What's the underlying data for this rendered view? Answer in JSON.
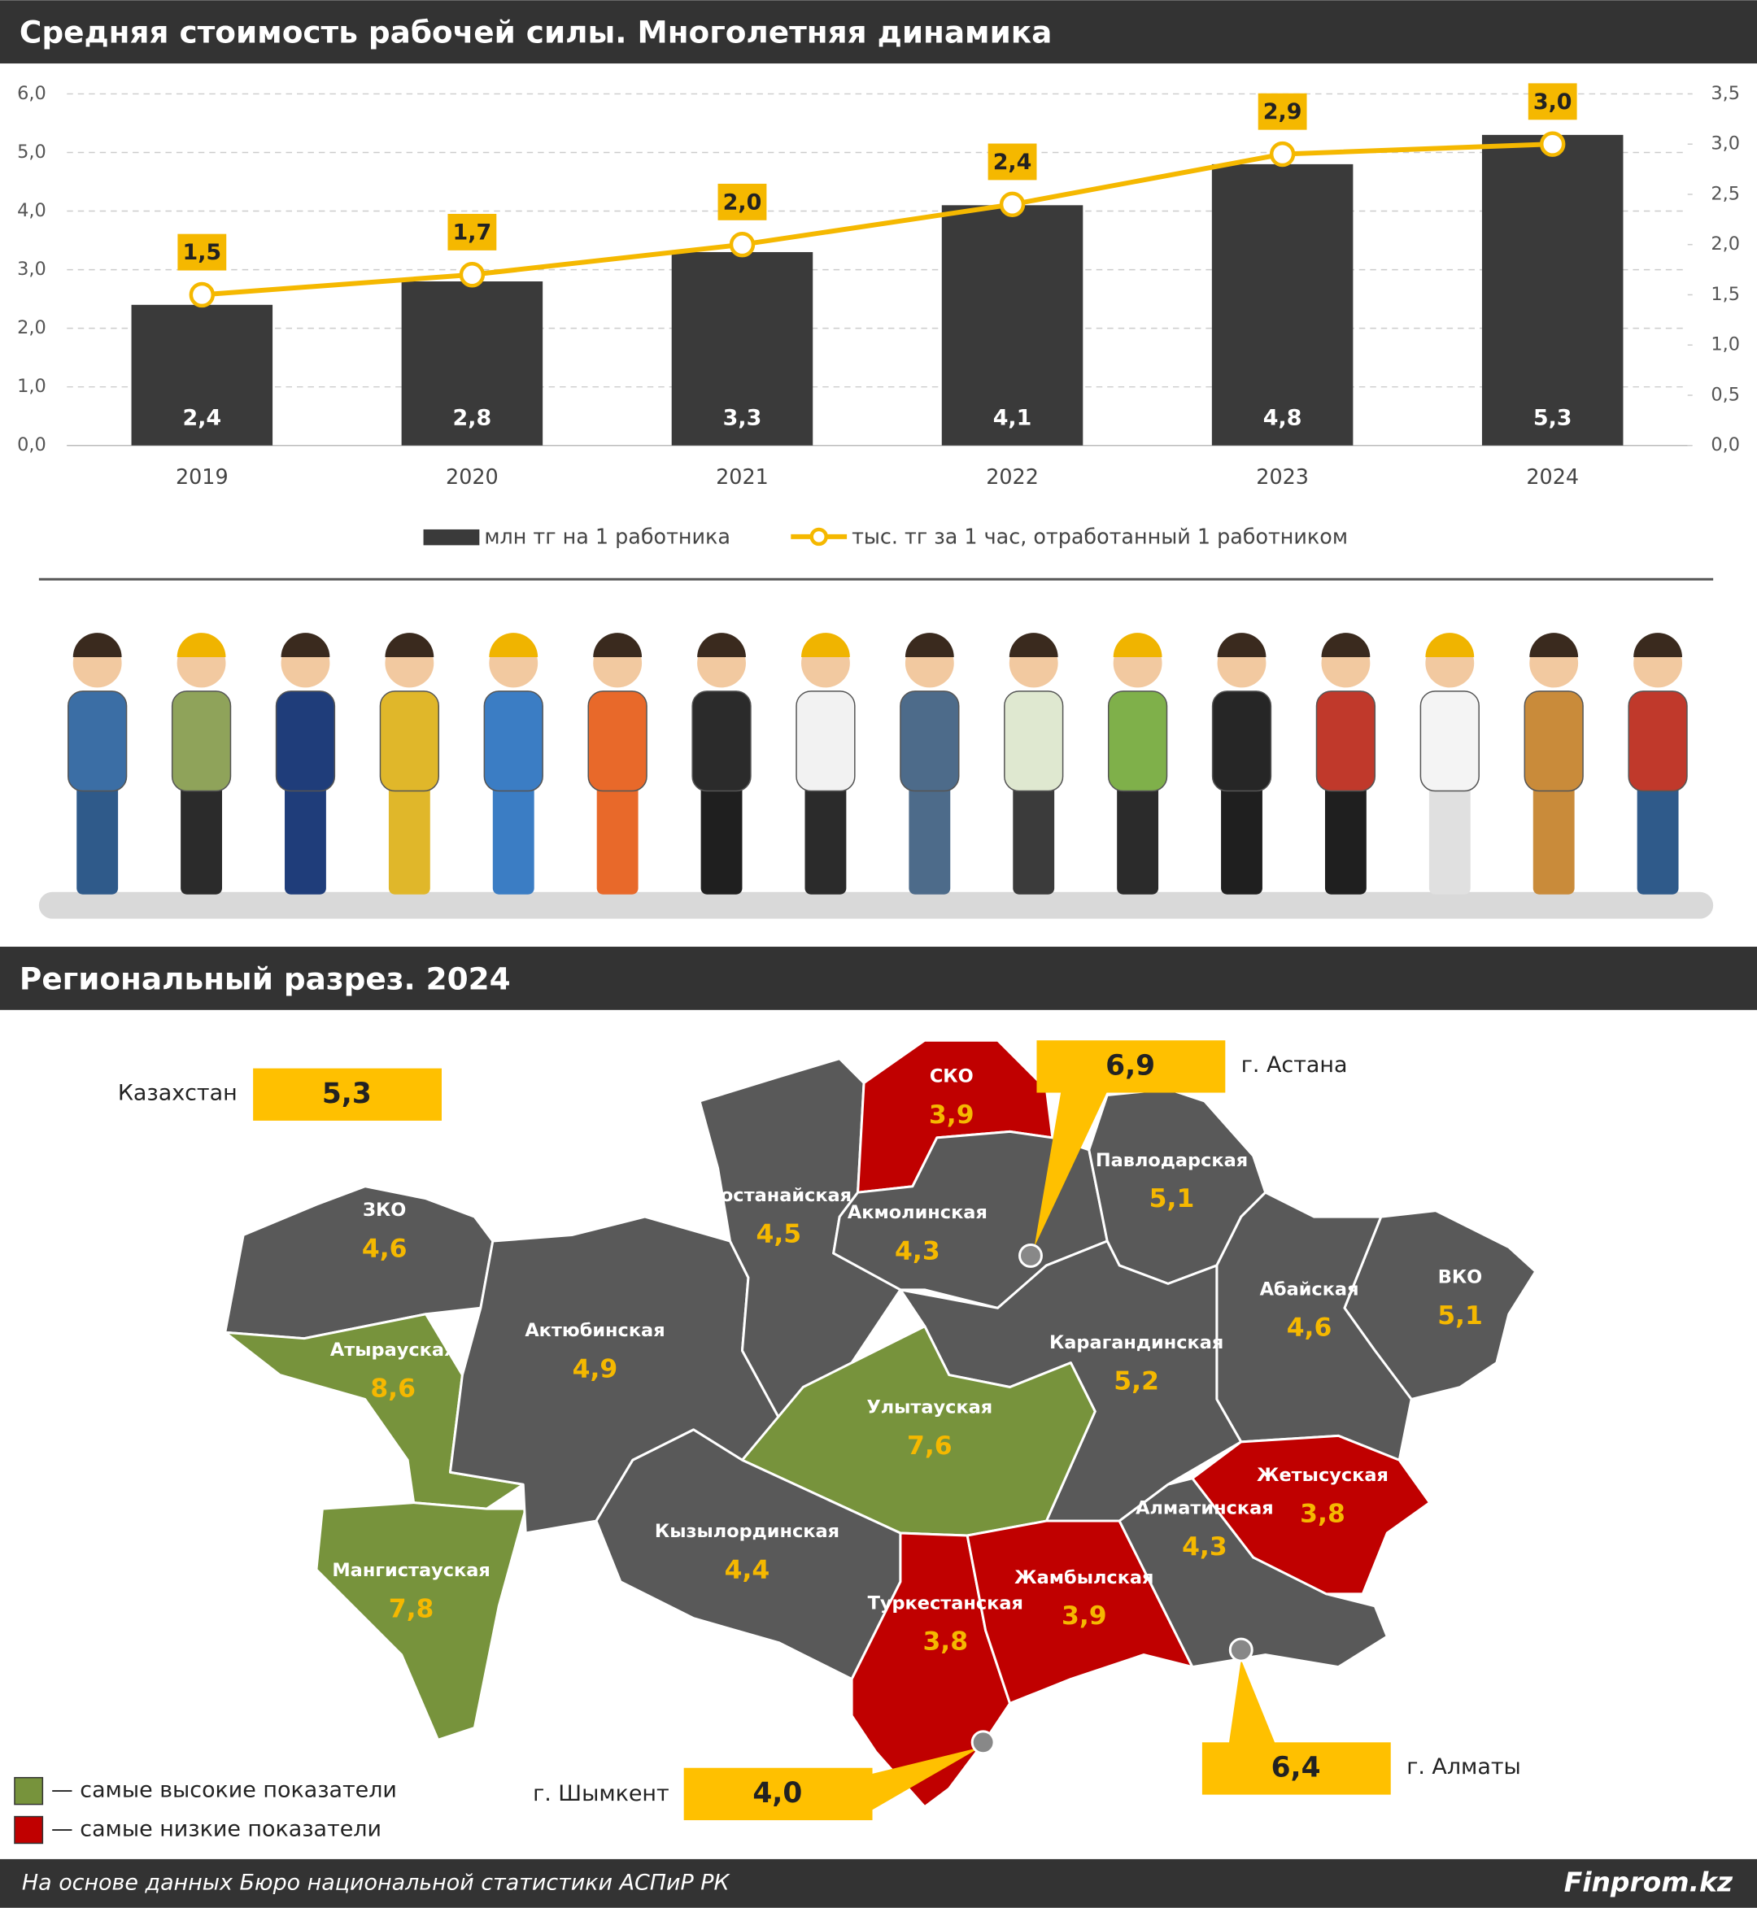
{
  "chart_data": {
    "type": "bar-line",
    "title": "Средняя стоимость рабочей силы. Многолетняя динамика",
    "categories": [
      "2019",
      "2020",
      "2021",
      "2022",
      "2023",
      "2024"
    ],
    "series": [
      {
        "name": "млн тг на 1 работника",
        "type": "bar",
        "color": "#3a3a3a",
        "axis": "y",
        "values": [
          2.4,
          2.8,
          3.3,
          4.1,
          4.8,
          5.3
        ],
        "value_labels": [
          "2,4",
          "2,8",
          "3,3",
          "4,1",
          "4,8",
          "5,3"
        ]
      },
      {
        "name": "тыс. тг за 1 час, отработанный 1 работником",
        "type": "line",
        "color": "#f5b800",
        "axis": "y2",
        "values": [
          1.5,
          1.7,
          2.0,
          2.4,
          2.9,
          3.0
        ],
        "value_labels": [
          "1,5",
          "1,7",
          "2,0",
          "2,4",
          "2,9",
          "3,0"
        ]
      }
    ],
    "ylim": [
      0,
      6
    ],
    "yticks": [
      {
        "value": 0,
        "label": "0,0"
      },
      {
        "value": 1,
        "label": "1,0"
      },
      {
        "value": 2,
        "label": "2,0"
      },
      {
        "value": 3,
        "label": "3,0"
      },
      {
        "value": 4,
        "label": "4,0"
      },
      {
        "value": 5,
        "label": "5,0"
      },
      {
        "value": 6,
        "label": "6,0"
      }
    ],
    "y2lim": [
      0,
      3.5
    ],
    "y2ticks": [
      {
        "value": 0,
        "label": "0,0"
      },
      {
        "value": 0.5,
        "label": "0,5"
      },
      {
        "value": 1,
        "label": "1,0"
      },
      {
        "value": 1.5,
        "label": "1,5"
      },
      {
        "value": 2,
        "label": "2,0"
      },
      {
        "value": 2.5,
        "label": "2,5"
      },
      {
        "value": 3,
        "label": "3,0"
      },
      {
        "value": 3.5,
        "label": "3,5"
      }
    ],
    "grid": true,
    "legend": "bottom"
  },
  "map": {
    "title": "Региональный разрез. 2024",
    "regions": [
      {
        "name": "ЗКО",
        "value": "4,6",
        "color": "#595959"
      },
      {
        "name": "Атырауская",
        "value": "8,6",
        "color": "#77933c"
      },
      {
        "name": "Мангистауская",
        "value": "7,8",
        "color": "#77933c"
      },
      {
        "name": "Актюбинская",
        "value": "4,9",
        "color": "#595959"
      },
      {
        "name": "Костанайская",
        "value": "4,5",
        "color": "#595959"
      },
      {
        "name": "СКО",
        "value": "3,9",
        "color": "#c00000"
      },
      {
        "name": "Акмолинская",
        "value": "4,3",
        "color": "#595959"
      },
      {
        "name": "Павлодарская",
        "value": "5,1",
        "color": "#595959"
      },
      {
        "name": "ВКО",
        "value": "5,1",
        "color": "#595959"
      },
      {
        "name": "Абайская",
        "value": "4,6",
        "color": "#595959"
      },
      {
        "name": "Карагандинская",
        "value": "5,2",
        "color": "#595959"
      },
      {
        "name": "Улытауская",
        "value": "7,6",
        "color": "#77933c"
      },
      {
        "name": "Кызылординская",
        "value": "4,4",
        "color": "#595959"
      },
      {
        "name": "Туркестанская",
        "value": "3,8",
        "color": "#c00000"
      },
      {
        "name": "Жамбылская",
        "value": "3,9",
        "color": "#c00000"
      },
      {
        "name": "Алматинская",
        "value": "4,3",
        "color": "#595959"
      },
      {
        "name": "Жетысуская",
        "value": "3,8",
        "color": "#c00000"
      }
    ],
    "callouts": [
      {
        "name": "Казахстан",
        "value": "5,3"
      },
      {
        "name": "г. Астана",
        "value": "6,9"
      },
      {
        "name": "г. Шымкент",
        "value": "4,0"
      },
      {
        "name": "г. Алматы",
        "value": "6,4"
      }
    ],
    "callout_color": "#ffc000",
    "legend": [
      {
        "label": "— самые высокие показатели",
        "color": "#77933c"
      },
      {
        "label": "— самые низкие показатели",
        "color": "#c00000"
      }
    ]
  },
  "footer": {
    "source": "На основе данных Бюро национальной статистики АСПиР РК",
    "brand": "Finprom.kz"
  }
}
